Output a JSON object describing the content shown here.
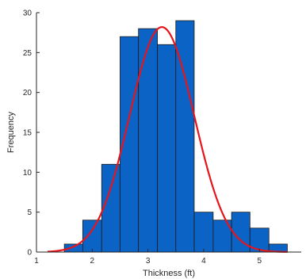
{
  "chart_data": {
    "type": "bar",
    "subtype": "histogram-with-fit-curve",
    "title": "",
    "xlabel": "Thickness (ft)",
    "ylabel": "Frequency",
    "xlim": [
      1,
      5.75
    ],
    "ylim": [
      0,
      30
    ],
    "xticks": [
      1,
      2,
      3,
      4,
      5
    ],
    "yticks": [
      0,
      5,
      10,
      15,
      20,
      25,
      30
    ],
    "grid": false,
    "bins": [
      {
        "x0": 1.5,
        "x1": 1.83,
        "count": 1
      },
      {
        "x0": 1.83,
        "x1": 2.17,
        "count": 4
      },
      {
        "x0": 2.17,
        "x1": 2.5,
        "count": 11
      },
      {
        "x0": 2.5,
        "x1": 2.83,
        "count": 27
      },
      {
        "x0": 2.83,
        "x1": 3.17,
        "count": 28
      },
      {
        "x0": 3.17,
        "x1": 3.5,
        "count": 26
      },
      {
        "x0": 3.5,
        "x1": 3.83,
        "count": 29
      },
      {
        "x0": 3.83,
        "x1": 4.17,
        "count": 5
      },
      {
        "x0": 4.17,
        "x1": 4.5,
        "count": 4
      },
      {
        "x0": 4.5,
        "x1": 4.83,
        "count": 5
      },
      {
        "x0": 4.83,
        "x1": 5.17,
        "count": 3
      },
      {
        "x0": 5.17,
        "x1": 5.5,
        "count": 1
      }
    ],
    "fit_curve": {
      "type": "normal",
      "mean": 3.25,
      "sd": 0.58,
      "peak": 28.2,
      "x_range": [
        1.2,
        5.5
      ]
    },
    "colors": {
      "bar_fill": "#0b63c5",
      "bar_edge": "#1a1a1a",
      "curve": "#e8141b",
      "axis": "#262626"
    }
  }
}
